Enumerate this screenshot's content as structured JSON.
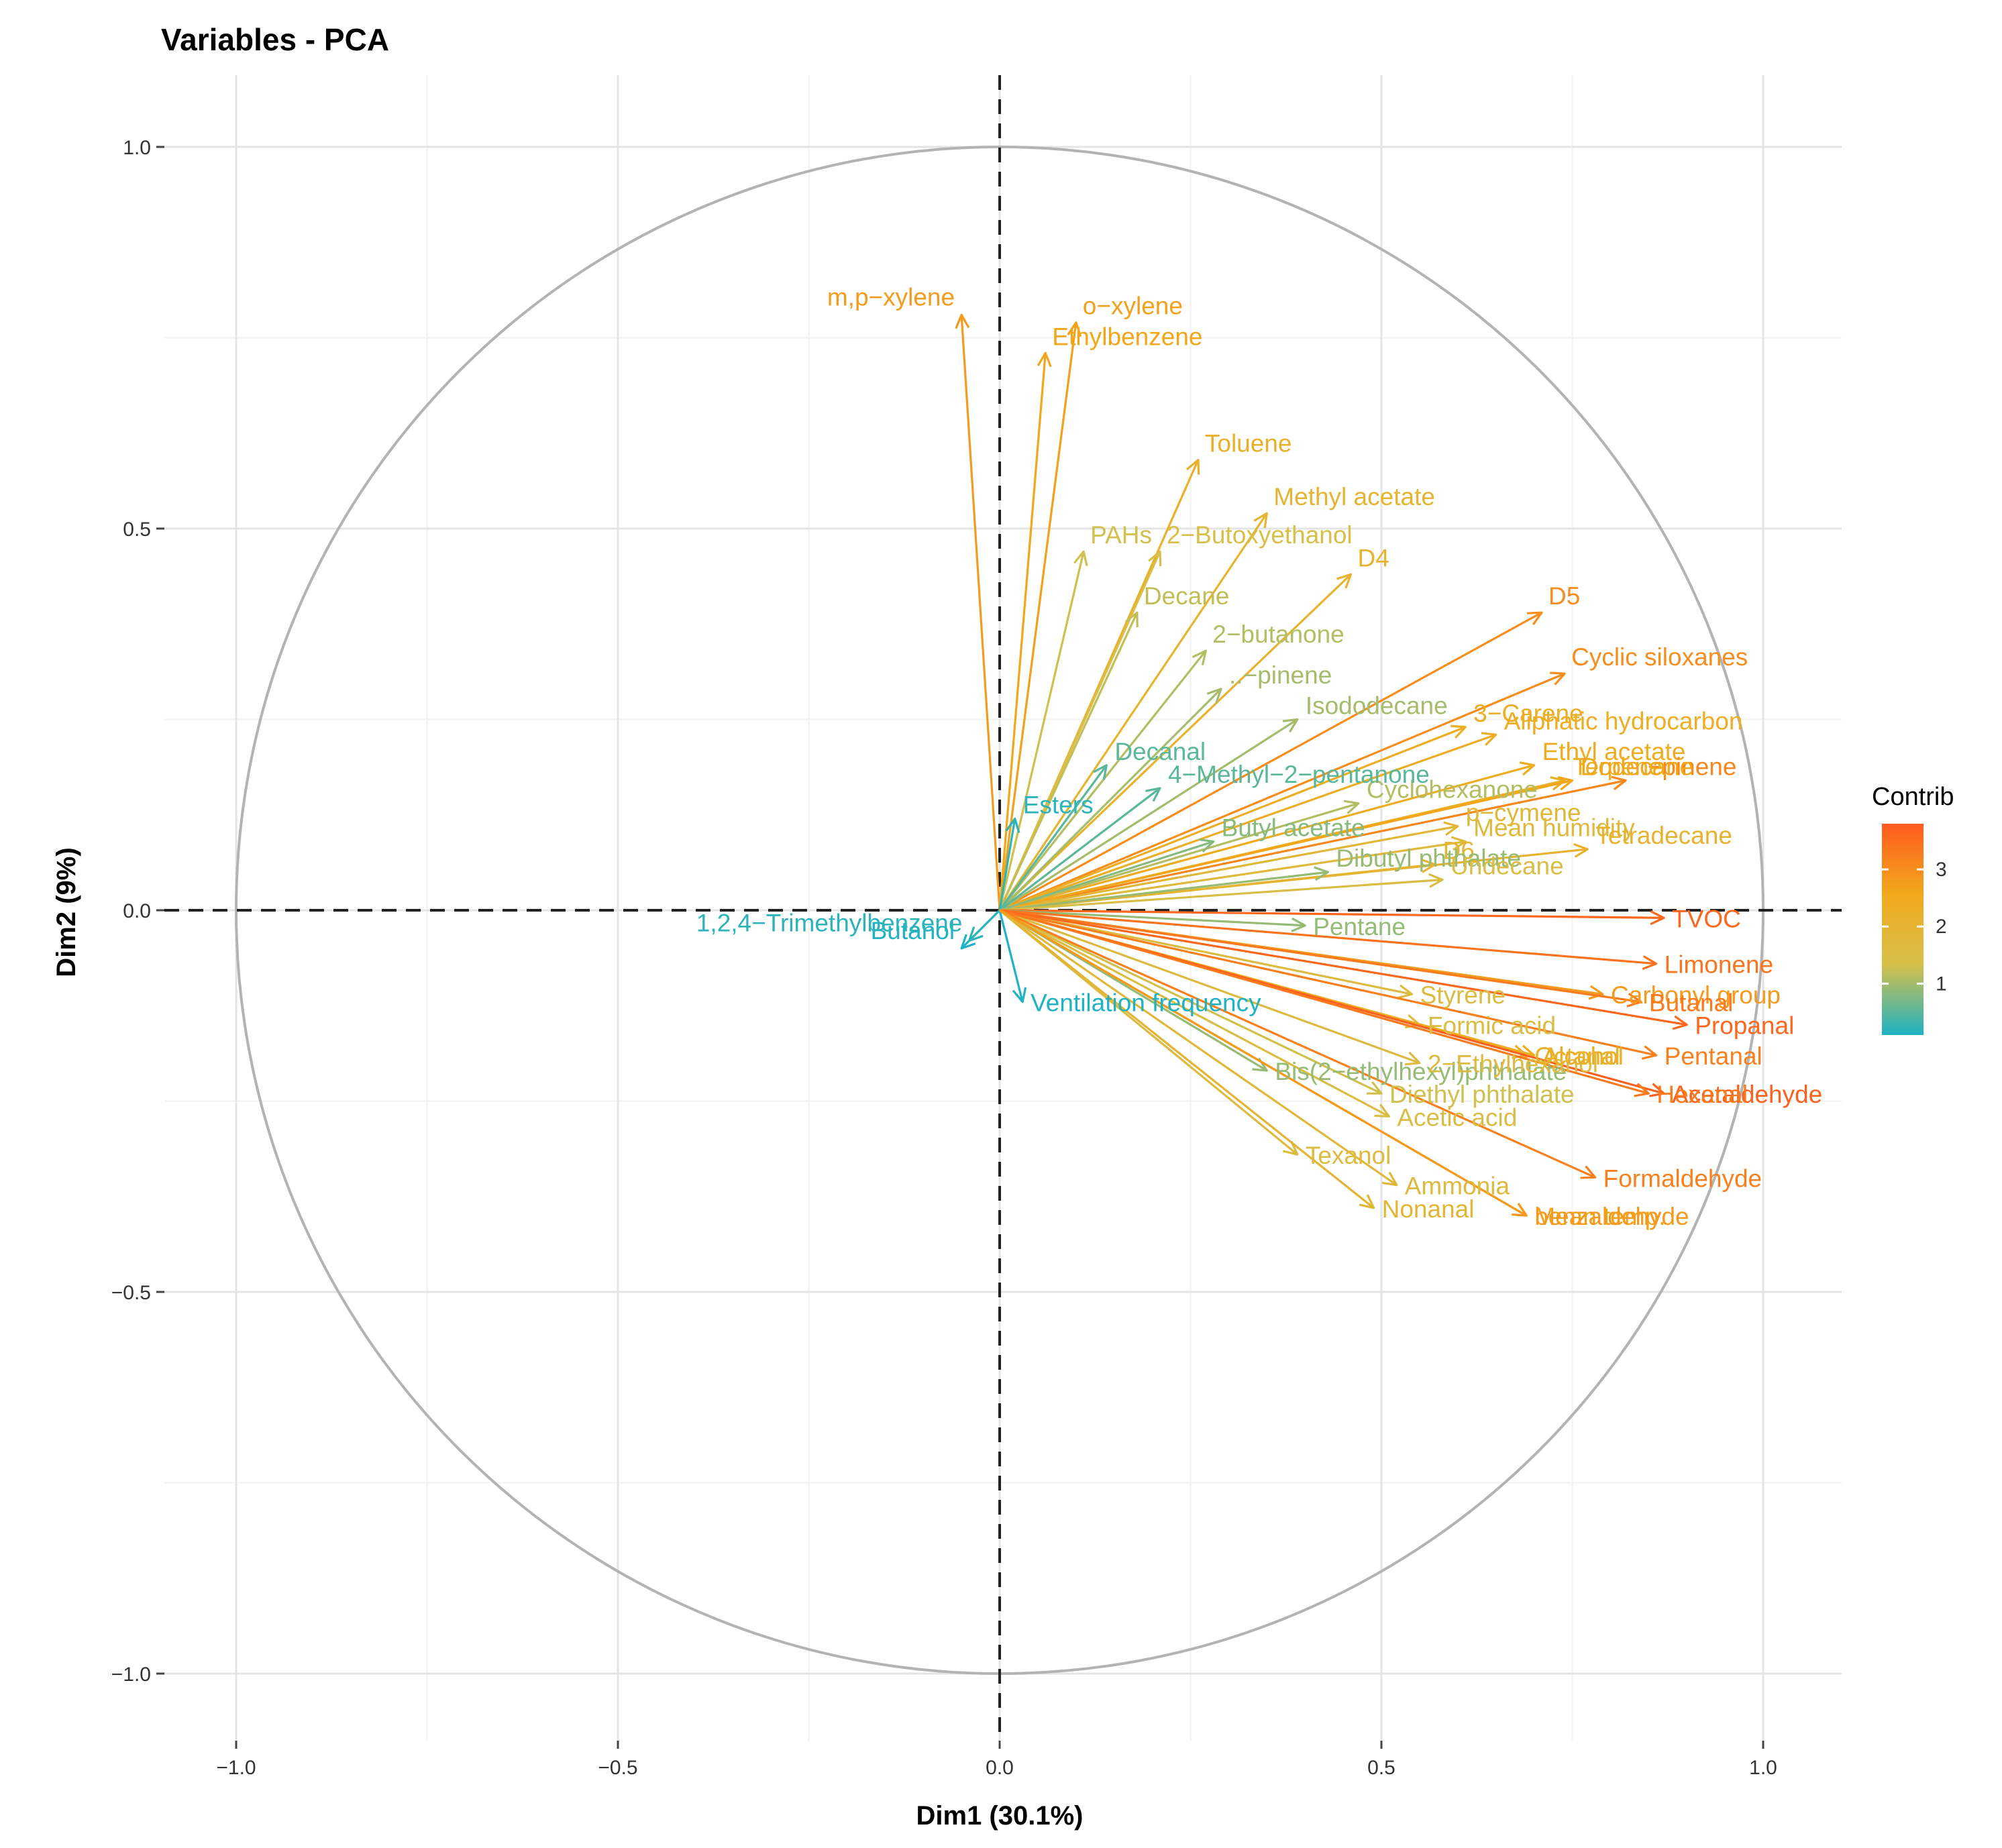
{
  "chart_data": {
    "type": "scatter",
    "subtype": "pca-variable-correlation-circle",
    "title": "Variables - PCA",
    "xlabel": "Dim1 (30.1%)",
    "ylabel": "Dim2 (9%)",
    "xlim": [
      -1.1,
      1.1
    ],
    "ylim": [
      -1.1,
      1.1
    ],
    "x_ticks": [
      -1.0,
      -0.5,
      0.0,
      0.5,
      1.0
    ],
    "x_tick_labels": [
      "−1.0",
      "−0.5",
      "0.0",
      "0.5",
      "1.0"
    ],
    "y_ticks": [
      -1.0,
      -0.5,
      0.0,
      0.5,
      1.0
    ],
    "y_tick_labels": [
      "−1.0",
      "−0.5",
      "0.0",
      "0.5",
      "1.0"
    ],
    "grid": true,
    "unit_circle": true,
    "legend": {
      "title": "Contrib",
      "placement": "right",
      "ticks": [
        1,
        2,
        3
      ],
      "tick_labels": [
        "1",
        "2",
        "3"
      ],
      "range": [
        0.1,
        3.8
      ],
      "colors": [
        "#1eb2c4",
        "#d6c04a",
        "#f2a91b",
        "#ff5a1e"
      ]
    },
    "variables": [
      {
        "name": "m,p−xylene",
        "x": -0.05,
        "y": 0.78,
        "contrib": 2.8
      },
      {
        "name": "o−xylene",
        "x": 0.1,
        "y": 0.77,
        "contrib": 2.7
      },
      {
        "name": "Ethylbenzene",
        "x": 0.06,
        "y": 0.73,
        "contrib": 2.6
      },
      {
        "name": "Toluene",
        "x": 0.26,
        "y": 0.59,
        "contrib": 2.2
      },
      {
        "name": "Methyl acetate",
        "x": 0.35,
        "y": 0.52,
        "contrib": 2.0
      },
      {
        "name": "PAHs",
        "x": 0.11,
        "y": 0.47,
        "contrib": 1.3
      },
      {
        "name": "2−Butoxyethanol",
        "x": 0.21,
        "y": 0.47,
        "contrib": 1.4
      },
      {
        "name": "Decane",
        "x": 0.18,
        "y": 0.39,
        "contrib": 1.2
      },
      {
        "name": "D4",
        "x": 0.46,
        "y": 0.44,
        "contrib": 2.1
      },
      {
        "name": "2−butanone",
        "x": 0.27,
        "y": 0.34,
        "contrib": 1.1
      },
      {
        "name": "..−pinene",
        "x": 0.29,
        "y": 0.29,
        "contrib": 1.0
      },
      {
        "name": "D5",
        "x": 0.71,
        "y": 0.39,
        "contrib": 3.0
      },
      {
        "name": "Cyclic siloxanes",
        "x": 0.74,
        "y": 0.31,
        "contrib": 3.0
      },
      {
        "name": "3−Carene",
        "x": 0.61,
        "y": 0.24,
        "contrib": 2.3
      },
      {
        "name": "Aliphatic hydrocarbon",
        "x": 0.65,
        "y": 0.23,
        "contrib": 2.3
      },
      {
        "name": "Isododecane",
        "x": 0.39,
        "y": 0.25,
        "contrib": 1.0
      },
      {
        "name": "Decanal",
        "x": 0.14,
        "y": 0.19,
        "contrib": 0.5
      },
      {
        "name": "Ethyl acetate",
        "x": 0.7,
        "y": 0.19,
        "contrib": 2.4
      },
      {
        "name": "..−pinene",
        "x": 0.82,
        "y": 0.17,
        "contrib": 3.1
      },
      {
        "name": "Cyclohexanone",
        "x": 0.47,
        "y": 0.14,
        "contrib": 1.1
      },
      {
        "name": "4−Methyl−2−pentanone",
        "x": 0.21,
        "y": 0.16,
        "contrib": 0.5
      },
      {
        "name": "Terpene",
        "x": 0.74,
        "y": 0.17,
        "contrib": 2.3
      },
      {
        "name": "p−cymene",
        "x": 0.6,
        "y": 0.11,
        "contrib": 1.8
      },
      {
        "name": "Dodecane",
        "x": 0.75,
        "y": 0.17,
        "contrib": 2.6
      },
      {
        "name": "Esters",
        "x": 0.02,
        "y": 0.12,
        "contrib": 0.2
      },
      {
        "name": "Mean humidity",
        "x": 0.61,
        "y": 0.09,
        "contrib": 1.7
      },
      {
        "name": "Butyl acetate",
        "x": 0.28,
        "y": 0.09,
        "contrib": 0.8
      },
      {
        "name": "Tetradecane",
        "x": 0.77,
        "y": 0.08,
        "contrib": 2.1
      },
      {
        "name": "D6",
        "x": 0.57,
        "y": 0.06,
        "contrib": 2.0
      },
      {
        "name": "Dibutyl phthalate",
        "x": 0.43,
        "y": 0.05,
        "contrib": 0.9
      },
      {
        "name": "Undecane",
        "x": 0.58,
        "y": 0.04,
        "contrib": 1.5
      },
      {
        "name": "TVOC",
        "x": 0.87,
        "y": -0.01,
        "contrib": 3.6
      },
      {
        "name": "Pentane",
        "x": 0.4,
        "y": -0.02,
        "contrib": 0.9
      },
      {
        "name": "Butanol",
        "x": -0.05,
        "y": -0.05,
        "contrib": 0.1
      },
      {
        "name": "1,2,4−Trimethylbenzene",
        "x": -0.04,
        "y": -0.04,
        "contrib": 0.2
      },
      {
        "name": "Limonene",
        "x": 0.86,
        "y": -0.07,
        "contrib": 3.4
      },
      {
        "name": "Ventilation frequency",
        "x": 0.03,
        "y": -0.12,
        "contrib": 0.1
      },
      {
        "name": "Styrene",
        "x": 0.54,
        "y": -0.11,
        "contrib": 1.6
      },
      {
        "name": "Carbonyl group",
        "x": 0.79,
        "y": -0.11,
        "contrib": 2.8
      },
      {
        "name": "Butanal",
        "x": 0.84,
        "y": -0.12,
        "contrib": 3.3
      },
      {
        "name": "Formic acid",
        "x": 0.55,
        "y": -0.15,
        "contrib": 1.5
      },
      {
        "name": "Alcohol",
        "x": 0.7,
        "y": -0.19,
        "contrib": 2.4
      },
      {
        "name": "Pentanal",
        "x": 0.86,
        "y": -0.19,
        "contrib": 3.2
      },
      {
        "name": "Propanal",
        "x": 0.9,
        "y": -0.15,
        "contrib": 3.6
      },
      {
        "name": "Bis(2−ethylhexyl)phthalate",
        "x": 0.35,
        "y": -0.21,
        "contrib": 0.9
      },
      {
        "name": "2−Ethylhexanol",
        "x": 0.55,
        "y": -0.2,
        "contrib": 1.6
      },
      {
        "name": "Octanal",
        "x": 0.69,
        "y": -0.19,
        "contrib": 2.2
      },
      {
        "name": "Acetaldehyde",
        "x": 0.87,
        "y": -0.24,
        "contrib": 3.7
      },
      {
        "name": "Diethyl phthalate",
        "x": 0.5,
        "y": -0.24,
        "contrib": 1.3
      },
      {
        "name": "Hexanal",
        "x": 0.85,
        "y": -0.24,
        "contrib": 3.3
      },
      {
        "name": "Acetic acid",
        "x": 0.51,
        "y": -0.27,
        "contrib": 1.5
      },
      {
        "name": "Texanol",
        "x": 0.39,
        "y": -0.32,
        "contrib": 1.6
      },
      {
        "name": "Ammonia",
        "x": 0.52,
        "y": -0.36,
        "contrib": 1.7
      },
      {
        "name": "Formaldehyde",
        "x": 0.78,
        "y": -0.35,
        "contrib": 3.2
      },
      {
        "name": "Mean temp.",
        "x": 0.69,
        "y": -0.4,
        "contrib": 2.7
      },
      {
        "name": "Nonanal",
        "x": 0.49,
        "y": -0.39,
        "contrib": 1.9
      },
      {
        "name": "benzaldehyde",
        "x": 0.69,
        "y": -0.4,
        "contrib": 2.8
      }
    ]
  }
}
